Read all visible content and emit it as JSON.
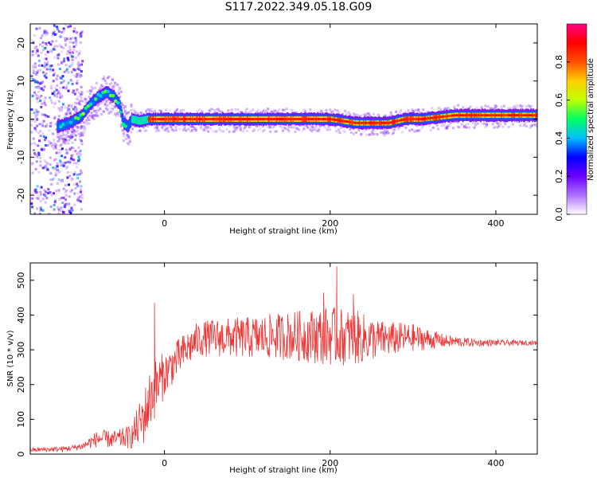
{
  "title": "S117.2022.349.05.18.G09",
  "colorbar": {
    "label": "Normalized spectral amplitude",
    "ticks": [
      "0.0",
      "0.2",
      "0.4",
      "0.6",
      "0.8"
    ],
    "tick_values": [
      0.0,
      0.2,
      0.4,
      0.6,
      0.8
    ],
    "range": [
      0,
      1
    ],
    "colormap": [
      "#ffffff",
      "#b070ff",
      "#6a00ff",
      "#0000ff",
      "#00c0ff",
      "#00ff60",
      "#c0ff00",
      "#ffd000",
      "#ff5000",
      "#ff0000",
      "#ff0080"
    ]
  },
  "chart_data": [
    {
      "type": "heatmap",
      "xlabel": "Height of straight line (km)",
      "ylabel": "Frequency (Hz)",
      "xlim": [
        -162,
        450
      ],
      "ylim": [
        -25,
        25
      ],
      "xticks": [
        0,
        200,
        400
      ],
      "yticks": [
        -20,
        -10,
        0,
        10,
        20
      ],
      "ridge": {
        "x": [
          -130,
          -115,
          -100,
          -90,
          -80,
          -70,
          -62,
          -55,
          -50,
          -45,
          -40,
          -30,
          -20,
          0,
          100,
          180,
          200,
          215,
          230,
          250,
          270,
          290,
          310,
          330,
          350,
          380,
          420,
          450
        ],
        "y": [
          -2,
          -1,
          1,
          4,
          6,
          7,
          6,
          4,
          -1,
          -2,
          0,
          -0.5,
          0,
          0,
          0,
          0,
          0,
          -0.5,
          -1,
          -1,
          -1,
          0,
          0,
          0.5,
          1,
          1,
          1,
          1
        ]
      }
    },
    {
      "type": "line",
      "xlabel": "Height of straight line (km)",
      "ylabel": "SNR (10 * v/v)",
      "xlim": [
        -162,
        450
      ],
      "ylim": [
        0,
        550
      ],
      "xticks": [
        0,
        200,
        400
      ],
      "yticks": [
        0,
        100,
        200,
        300,
        400,
        500
      ],
      "color": "#ee3333",
      "envelope": {
        "x": [
          -162,
          -120,
          -100,
          -80,
          -60,
          -40,
          -25,
          -15,
          -5,
          0,
          20,
          40,
          60,
          100,
          150,
          200,
          230,
          260,
          300,
          340,
          380,
          420,
          450
        ],
        "mean": [
          12,
          15,
          22,
          45,
          42,
          50,
          105,
          175,
          210,
          230,
          285,
          330,
          335,
          335,
          340,
          340,
          335,
          330,
          335,
          325,
          320,
          320,
          320
        ],
        "amplitude": [
          6,
          8,
          10,
          25,
          25,
          35,
          80,
          90,
          80,
          60,
          55,
          50,
          55,
          60,
          70,
          85,
          80,
          55,
          40,
          18,
          10,
          8,
          6
        ]
      },
      "spikes": [
        {
          "x": -12,
          "y": 435
        },
        {
          "x": 208,
          "y": 540
        },
        {
          "x": 192,
          "y": 465
        },
        {
          "x": 228,
          "y": 460
        }
      ]
    }
  ]
}
